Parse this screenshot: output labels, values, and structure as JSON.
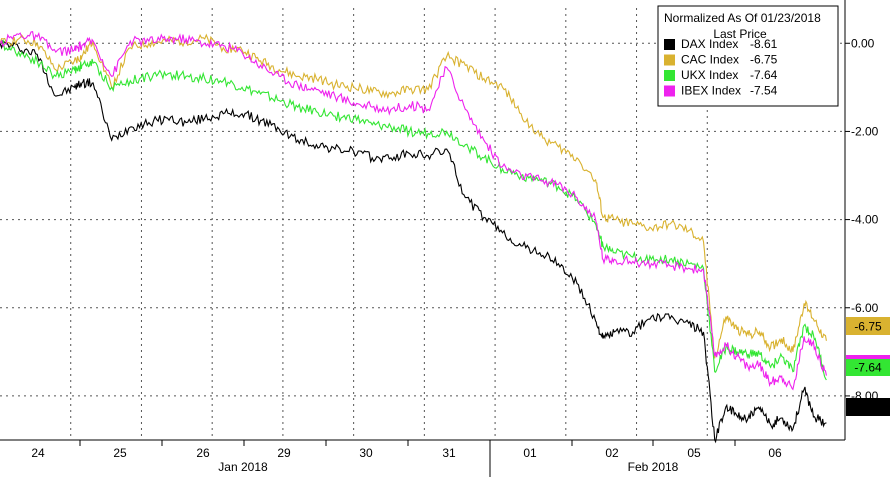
{
  "chart_data": {
    "type": "line",
    "legend": {
      "title": "Normalized As Of 01/23/2018",
      "subtitle": "Last Price",
      "placement": "top-right",
      "entries": [
        {
          "name": "DAX Index",
          "value": "-8.61",
          "color": "#000000"
        },
        {
          "name": "CAC Index",
          "value": "-6.75",
          "color": "#d9b230"
        },
        {
          "name": "UKX Index",
          "value": "-7.64",
          "color": "#33e633"
        },
        {
          "name": "IBEX Index",
          "value": "-7.54",
          "color": "#ee22ee"
        }
      ]
    },
    "x_ticks": [
      "24",
      "25",
      "26",
      "29",
      "30",
      "31",
      "01",
      "02",
      "05",
      "06"
    ],
    "x_month_labels": [
      "Jan 2018",
      "Feb 2018"
    ],
    "y_ticks": [
      "0.00",
      "-2.00",
      "-4.00",
      "-6.00",
      "-8.00"
    ],
    "ylim": [
      -9.0,
      0.8
    ],
    "grid": true,
    "last_value_tags": [
      {
        "label": "-6.75",
        "value": -6.75,
        "color": "#d9b230"
      },
      {
        "label": "-7.64",
        "value": -7.64,
        "color": "#33e633"
      },
      {
        "label": "-8.61",
        "value": -8.61,
        "color": "#000000"
      }
    ],
    "x": [
      0,
      0.25,
      0.5,
      0.75,
      1,
      1.1,
      1.25,
      1.5,
      1.75,
      2,
      2.25,
      2.5,
      2.75,
      3,
      3.25,
      3.5,
      3.75,
      4,
      4.25,
      4.5,
      4.75,
      5,
      5.25,
      5.5,
      5.75,
      6,
      6.25,
      6.5,
      6.75,
      7,
      7.25,
      7.5,
      7.75,
      8,
      8.1,
      8.25,
      8.5,
      8.75,
      9,
      9.25,
      9.45
    ],
    "series": [
      {
        "name": "DAX Index",
        "color": "#000000",
        "values": [
          0,
          -0.1,
          -0.25,
          -1.2,
          -1.0,
          -0.9,
          -0.9,
          -2.2,
          -1.9,
          -1.8,
          -1.7,
          -1.8,
          -1.7,
          -1.6,
          -1.6,
          -1.75,
          -1.95,
          -2.2,
          -2.3,
          -2.4,
          -2.45,
          -2.6,
          -2.6,
          -2.5,
          -2.55,
          -2.4,
          -3.5,
          -3.95,
          -4.3,
          -4.6,
          -4.75,
          -5.0,
          -5.45,
          -6.3,
          -6.7,
          -6.55,
          -6.55,
          -6.2,
          -6.25,
          -6.35,
          -6.55
        ]
      },
      {
        "name": "CAC Index",
        "color": "#d9b230",
        "values": [
          0,
          0.1,
          0.0,
          -0.6,
          -0.4,
          -0.3,
          0.05,
          -1.0,
          -0.1,
          0.0,
          0.05,
          0.05,
          0.1,
          -0.1,
          -0.15,
          -0.4,
          -0.6,
          -0.75,
          -0.8,
          -0.95,
          -1.0,
          -1.1,
          -1.15,
          -1.05,
          -1.05,
          -0.3,
          -0.5,
          -0.8,
          -1.0,
          -1.6,
          -2.1,
          -2.35,
          -2.6,
          -3.1,
          -3.95,
          -4.0,
          -4.1,
          -4.2,
          -4.1,
          -4.25,
          -4.5
        ]
      },
      {
        "name": "UKX Index",
        "color": "#33e633",
        "values": [
          0,
          -0.2,
          -0.4,
          -0.75,
          -0.6,
          -0.5,
          -0.45,
          -1.0,
          -0.85,
          -0.75,
          -0.7,
          -0.75,
          -0.8,
          -0.85,
          -1.0,
          -1.15,
          -1.3,
          -1.45,
          -1.55,
          -1.65,
          -1.7,
          -1.85,
          -1.9,
          -2.0,
          -2.05,
          -2.0,
          -2.3,
          -2.6,
          -2.85,
          -3.0,
          -3.1,
          -3.25,
          -3.55,
          -4.1,
          -4.6,
          -4.75,
          -4.85,
          -4.9,
          -4.9,
          -5.0,
          -5.1
        ]
      },
      {
        "name": "IBEX Index",
        "color": "#ee22ee",
        "values": [
          0,
          0.2,
          0.15,
          -0.2,
          -0.15,
          -0.05,
          0.05,
          -0.75,
          0.05,
          0.05,
          0.1,
          0.1,
          0.0,
          -0.05,
          -0.2,
          -0.5,
          -0.75,
          -0.95,
          -1.05,
          -1.2,
          -1.35,
          -1.45,
          -1.5,
          -1.4,
          -1.5,
          -0.55,
          -1.5,
          -2.2,
          -2.8,
          -3.0,
          -3.1,
          -3.2,
          -3.5,
          -4.0,
          -4.9,
          -4.9,
          -4.95,
          -5.0,
          -5.05,
          -5.1,
          -5.15
        ]
      }
    ],
    "final_drop": {
      "x": [
        9.45,
        9.6,
        9.75,
        9.9,
        10.05,
        10.2,
        10.35,
        10.5,
        10.65,
        10.8,
        10.95,
        11.1
      ],
      "series": [
        {
          "name": "DAX Index",
          "values": [
            -6.55,
            -9.0,
            -8.25,
            -8.45,
            -8.5,
            -8.3,
            -8.65,
            -8.5,
            -8.75,
            -7.85,
            -8.5,
            -8.61
          ]
        },
        {
          "name": "CAC Index",
          "values": [
            -4.5,
            -7.15,
            -6.2,
            -6.5,
            -6.6,
            -6.55,
            -6.9,
            -6.7,
            -7.0,
            -5.9,
            -6.3,
            -6.75
          ]
        },
        {
          "name": "UKX Index",
          "values": [
            -5.1,
            -7.45,
            -6.9,
            -7.0,
            -7.05,
            -7.05,
            -7.35,
            -7.1,
            -7.45,
            -6.4,
            -6.7,
            -7.64
          ]
        },
        {
          "name": "IBEX Index",
          "values": [
            -5.15,
            -7.1,
            -6.85,
            -7.1,
            -7.35,
            -7.3,
            -7.7,
            -7.55,
            -7.85,
            -6.65,
            -6.9,
            -7.54
          ]
        }
      ]
    }
  }
}
